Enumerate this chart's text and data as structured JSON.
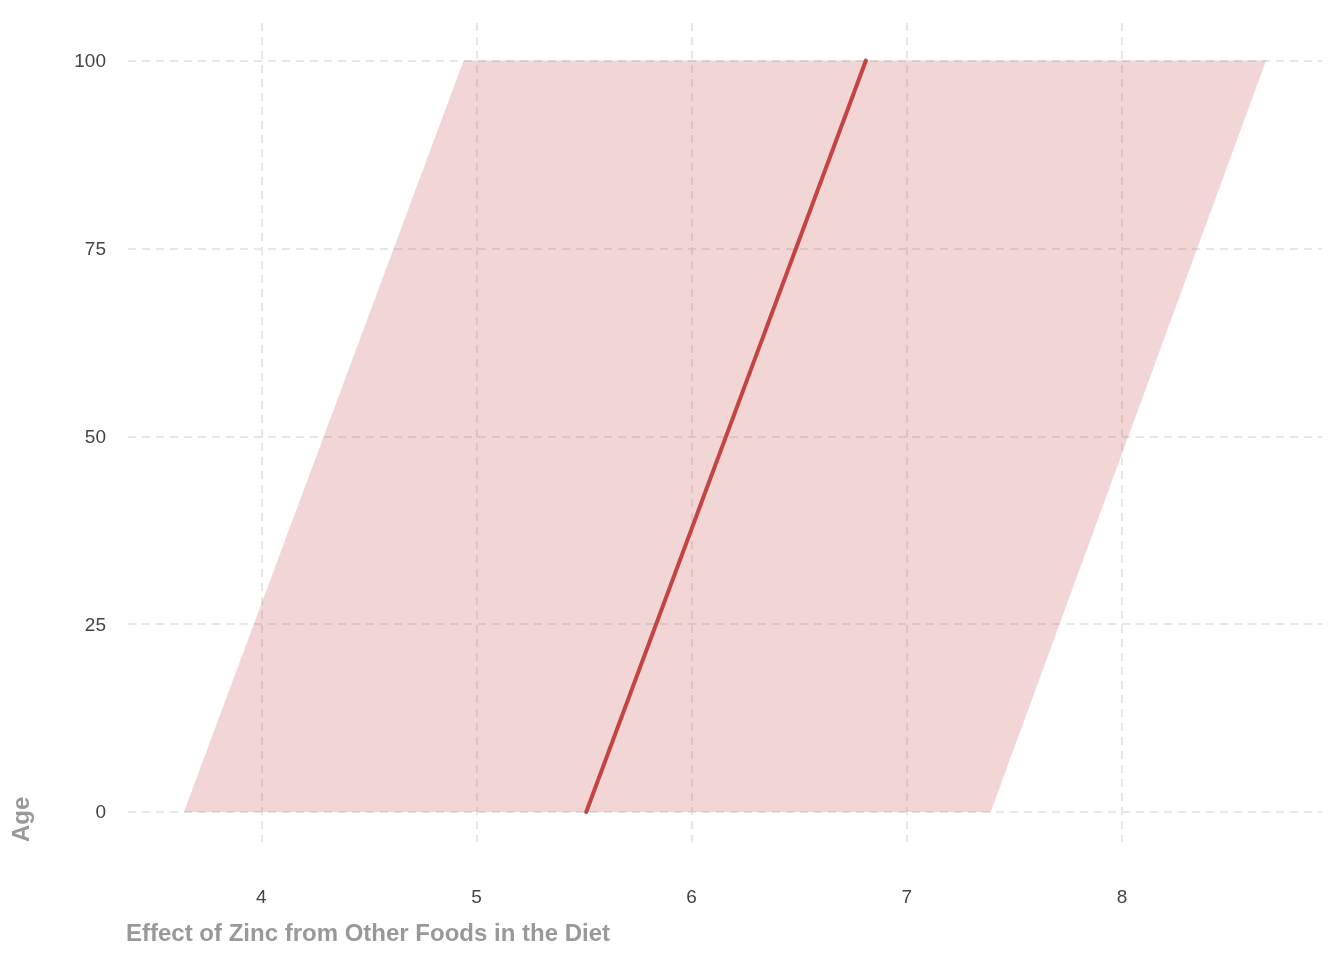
{
  "chart_data": {
    "type": "line",
    "orientation": "horizontal",
    "xlabel": "Effect of Zinc from Other Foods in the Diet",
    "ylabel": "Age",
    "series": [
      {
        "color": "#c44444",
        "x": [
          0,
          100
        ],
        "values": [
          5.51,
          6.81
        ],
        "lower": [
          3.64,
          4.94
        ],
        "upper": [
          7.39,
          8.67
        ]
      }
    ],
    "xlim": [
      3.38,
      8.93
    ],
    "xticks": [
      4,
      5,
      6,
      7,
      8
    ],
    "ylim": [
      -4,
      105
    ],
    "yticks": [
      0,
      25,
      50,
      75,
      100
    ],
    "grid": true,
    "marker": "none",
    "line_style": "solid"
  }
}
